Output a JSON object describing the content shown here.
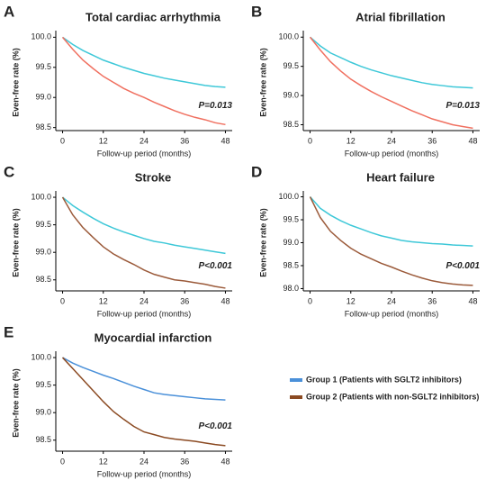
{
  "chart_data": [
    {
      "type": "line",
      "letter": "A",
      "title": "Total cardiac arrhythmia",
      "xlabel": "Follow-up period (months)",
      "ylabel": "Even-free rate (%)",
      "annotation": "P=0.013",
      "x": [
        0,
        3,
        6,
        9,
        12,
        15,
        18,
        21,
        24,
        27,
        30,
        33,
        36,
        39,
        42,
        45,
        48
      ],
      "xlim": [
        -2,
        50
      ],
      "xticks": [
        0,
        12,
        24,
        36,
        48
      ],
      "ylim": [
        98.45,
        100.05
      ],
      "yticks": [
        {
          "value": 100,
          "label": "100.0"
        },
        99.5,
        {
          "value": 99,
          "label": "99.0"
        },
        98.5
      ],
      "series": [
        {
          "color": "#3ec8d8",
          "values": [
            100,
            99.88,
            99.78,
            99.7,
            99.62,
            99.56,
            99.5,
            99.45,
            99.4,
            99.36,
            99.32,
            99.29,
            99.26,
            99.23,
            99.2,
            99.18,
            99.17
          ]
        },
        {
          "color": "#f07060",
          "values": [
            100,
            99.8,
            99.62,
            99.48,
            99.35,
            99.25,
            99.15,
            99.07,
            99.0,
            98.92,
            98.85,
            98.78,
            98.72,
            98.67,
            98.63,
            98.58,
            98.55
          ]
        }
      ]
    },
    {
      "type": "line",
      "letter": "B",
      "title": "Atrial fibrillation",
      "xlabel": "Follow-up period (months)",
      "ylabel": "Even-free rate (%)",
      "annotation": "P=0.013",
      "x": [
        0,
        3,
        6,
        9,
        12,
        15,
        18,
        21,
        24,
        27,
        30,
        33,
        36,
        39,
        42,
        45,
        48
      ],
      "xlim": [
        -2,
        50
      ],
      "xticks": [
        0,
        12,
        24,
        36,
        48
      ],
      "ylim": [
        98.4,
        100.05
      ],
      "yticks": [
        {
          "value": 100,
          "label": "100.0"
        },
        99.5,
        {
          "value": 99,
          "label": "99.0"
        },
        98.5
      ],
      "series": [
        {
          "color": "#3ec8d8",
          "values": [
            100,
            99.85,
            99.73,
            99.65,
            99.57,
            99.5,
            99.44,
            99.39,
            99.34,
            99.3,
            99.26,
            99.22,
            99.19,
            99.17,
            99.15,
            99.14,
            99.13
          ]
        },
        {
          "color": "#f07060",
          "values": [
            100,
            99.78,
            99.58,
            99.42,
            99.28,
            99.17,
            99.07,
            98.98,
            98.9,
            98.82,
            98.74,
            98.67,
            98.6,
            98.55,
            98.5,
            98.47,
            98.44
          ]
        }
      ]
    },
    {
      "type": "line",
      "letter": "C",
      "title": "Stroke",
      "xlabel": "Follow-up period (months)",
      "ylabel": "Even-free rate (%)",
      "annotation": "P<0.001",
      "x": [
        0,
        3,
        6,
        9,
        12,
        15,
        18,
        21,
        24,
        27,
        30,
        33,
        36,
        39,
        42,
        45,
        48
      ],
      "xlim": [
        -2,
        50
      ],
      "xticks": [
        0,
        12,
        24,
        36,
        48
      ],
      "ylim": [
        98.3,
        100.05
      ],
      "yticks": [
        {
          "value": 100,
          "label": "100.0"
        },
        99.5,
        {
          "value": 99,
          "label": "99.0"
        },
        98.5
      ],
      "series": [
        {
          "color": "#3ec8d8",
          "values": [
            100,
            99.85,
            99.73,
            99.62,
            99.52,
            99.44,
            99.37,
            99.31,
            99.25,
            99.2,
            99.17,
            99.13,
            99.1,
            99.07,
            99.04,
            99.01,
            98.98
          ]
        },
        {
          "color": "#9b5a3a",
          "values": [
            100,
            99.68,
            99.45,
            99.27,
            99.1,
            98.97,
            98.87,
            98.78,
            98.68,
            98.6,
            98.55,
            98.5,
            98.48,
            98.45,
            98.42,
            98.38,
            98.35
          ]
        }
      ]
    },
    {
      "type": "line",
      "letter": "D",
      "title": "Heart failure",
      "xlabel": "Follow-up period (months)",
      "ylabel": "Even-free rate (%)",
      "annotation": "P<0.001",
      "x": [
        0,
        3,
        6,
        9,
        12,
        15,
        18,
        21,
        24,
        27,
        30,
        33,
        36,
        39,
        42,
        45,
        48
      ],
      "xlim": [
        -2,
        50
      ],
      "xticks": [
        0,
        12,
        24,
        36,
        48
      ],
      "ylim": [
        97.95,
        100.05
      ],
      "yticks": [
        {
          "value": 100,
          "label": "100.0"
        },
        99.5,
        {
          "value": 99,
          "label": "99.0"
        },
        98.5,
        {
          "value": 98,
          "label": "98.0"
        }
      ],
      "series": [
        {
          "color": "#3ec8d8",
          "values": [
            100,
            99.75,
            99.6,
            99.48,
            99.38,
            99.3,
            99.22,
            99.15,
            99.1,
            99.05,
            99.02,
            99.0,
            98.98,
            98.97,
            98.95,
            98.94,
            98.93
          ]
        },
        {
          "color": "#9b5a3a",
          "values": [
            100,
            99.55,
            99.25,
            99.05,
            98.88,
            98.75,
            98.65,
            98.55,
            98.47,
            98.38,
            98.3,
            98.23,
            98.17,
            98.13,
            98.1,
            98.08,
            98.07
          ]
        }
      ]
    },
    {
      "type": "line",
      "letter": "E",
      "title": "Myocardial infarction",
      "xlabel": "Follow-up period (months)",
      "ylabel": "Even-free rate (%)",
      "annotation": "P<0.001",
      "x": [
        0,
        3,
        6,
        9,
        12,
        15,
        18,
        21,
        24,
        27,
        30,
        33,
        36,
        39,
        42,
        45,
        48
      ],
      "xlim": [
        -2,
        50
      ],
      "xticks": [
        0,
        12,
        24,
        36,
        48
      ],
      "ylim": [
        98.3,
        100.05
      ],
      "yticks": [
        {
          "value": 100,
          "label": "100.0"
        },
        99.5,
        {
          "value": 99,
          "label": "99.0"
        },
        98.5
      ],
      "series": [
        {
          "name": "Group 1 (Patients with SGLT2 inhibitors)",
          "color": "#4a90d9",
          "values": [
            100,
            99.9,
            99.82,
            99.75,
            99.68,
            99.62,
            99.55,
            99.48,
            99.42,
            99.36,
            99.33,
            99.31,
            99.29,
            99.27,
            99.25,
            99.24,
            99.23
          ]
        },
        {
          "name": "Group 2 (Patients with non-SGLT2 inhibitors)",
          "color": "#8b4a22",
          "values": [
            100,
            99.8,
            99.6,
            99.4,
            99.2,
            99.02,
            98.88,
            98.75,
            98.65,
            98.6,
            98.55,
            98.52,
            98.5,
            98.48,
            98.45,
            98.42,
            98.4
          ]
        }
      ]
    }
  ]
}
